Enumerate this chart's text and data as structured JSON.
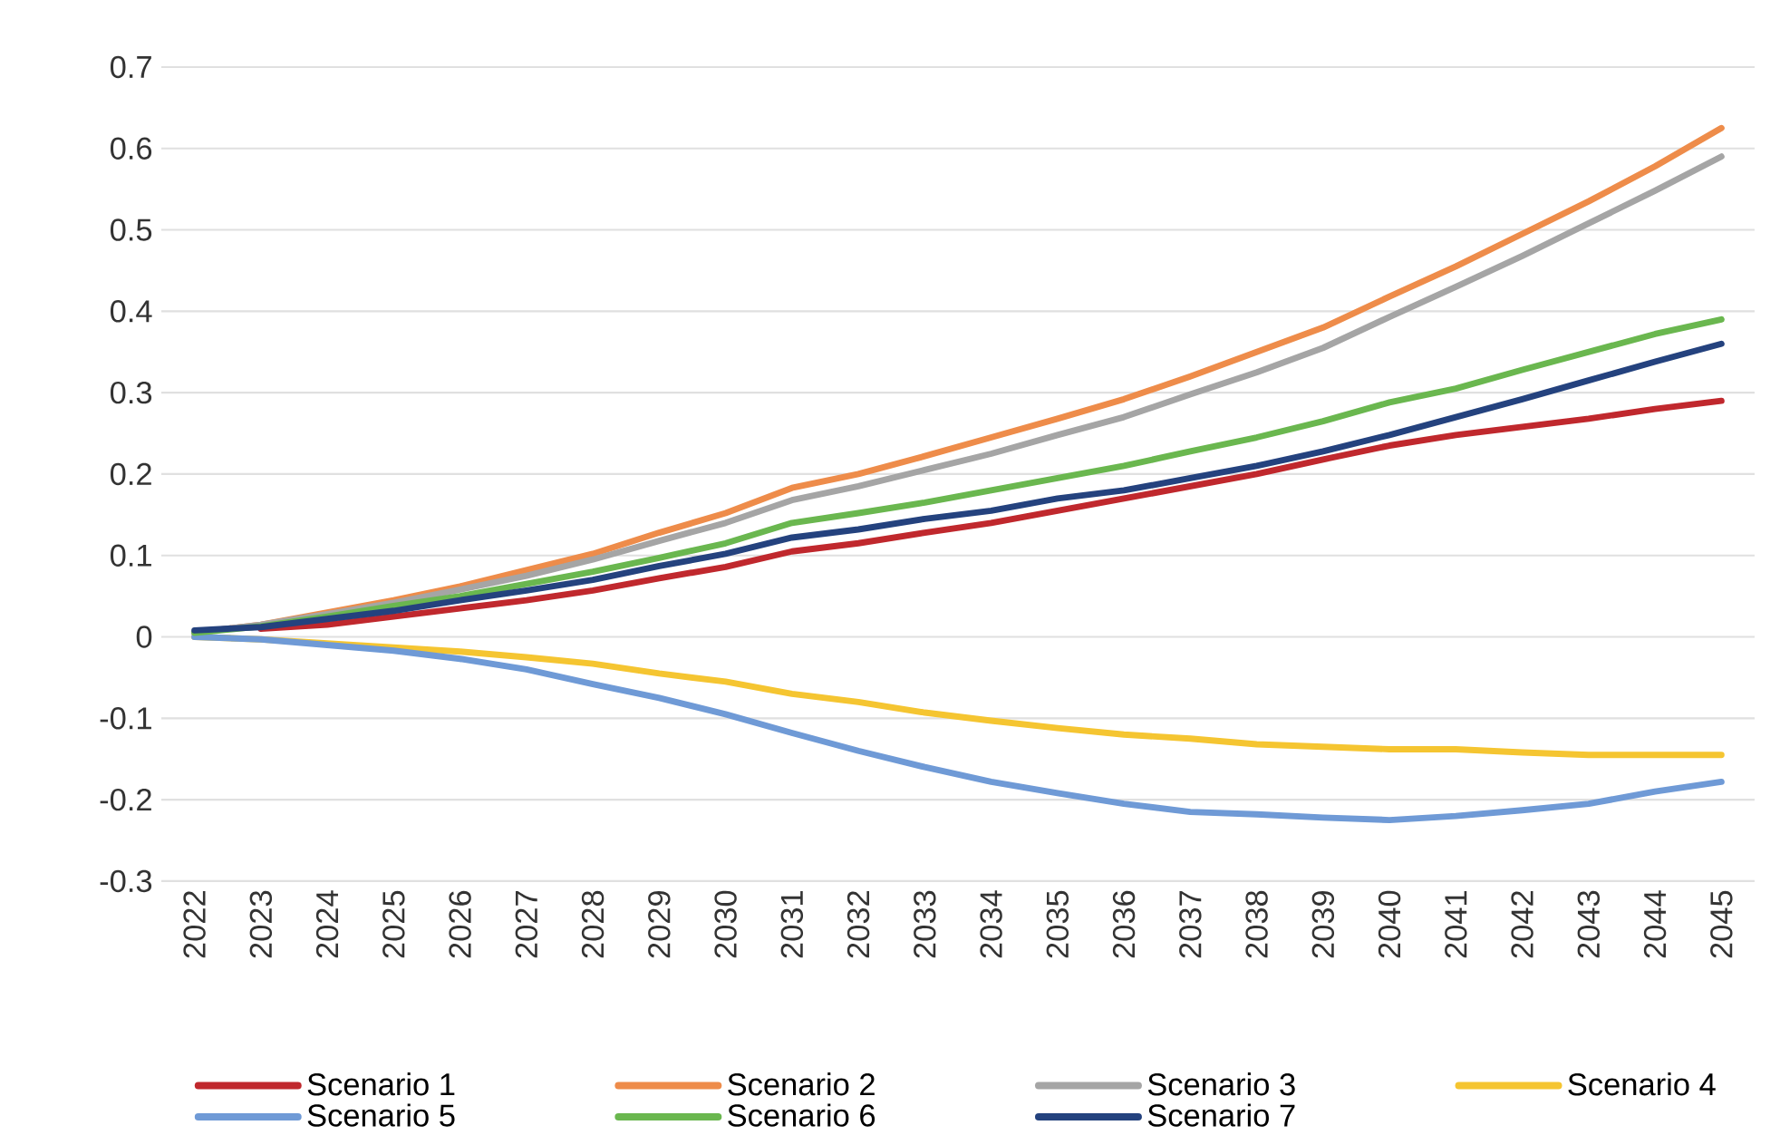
{
  "chart_data": {
    "type": "line",
    "categories": [
      "2022",
      "2023",
      "2024",
      "2025",
      "2026",
      "2027",
      "2028",
      "2029",
      "2030",
      "2031",
      "2032",
      "2033",
      "2034",
      "2035",
      "2036",
      "2037",
      "2038",
      "2039",
      "2040",
      "2041",
      "2042",
      "2043",
      "2044",
      "2045"
    ],
    "ylim": [
      -0.3,
      0.7
    ],
    "yticks": [
      -0.3,
      -0.2,
      -0.1,
      0,
      0.1,
      0.2,
      0.3,
      0.4,
      0.5,
      0.6,
      0.7
    ],
    "grid": "y",
    "legend": "bottom",
    "line_style": "solid",
    "series": [
      {
        "name": "Scenario 1",
        "color": "#c0282d",
        "values": [
          null,
          0.01,
          0.015,
          0.025,
          0.035,
          0.045,
          0.057,
          0.072,
          0.086,
          0.105,
          0.115,
          0.128,
          0.14,
          0.155,
          0.17,
          0.185,
          0.2,
          0.218,
          0.235,
          0.248,
          0.258,
          0.268,
          0.28,
          0.29
        ]
      },
      {
        "name": "Scenario 2",
        "color": "#ee8c4a",
        "values": [
          0.005,
          0.015,
          0.03,
          0.045,
          0.062,
          0.082,
          0.102,
          0.128,
          0.152,
          0.183,
          0.2,
          0.222,
          0.245,
          0.268,
          0.292,
          0.32,
          0.35,
          0.38,
          0.418,
          0.455,
          0.495,
          0.535,
          0.578,
          0.625
        ]
      },
      {
        "name": "Scenario 3",
        "color": "#a5a5a5",
        "values": [
          0.005,
          0.015,
          0.028,
          0.042,
          0.058,
          0.075,
          0.095,
          0.118,
          0.14,
          0.168,
          0.185,
          0.205,
          0.225,
          0.248,
          0.27,
          0.298,
          0.325,
          0.355,
          0.393,
          0.43,
          0.468,
          0.508,
          0.548,
          0.59
        ]
      },
      {
        "name": "Scenario 4",
        "color": "#f5c531",
        "values": [
          0,
          -0.003,
          -0.008,
          -0.013,
          -0.018,
          -0.025,
          -0.033,
          -0.045,
          -0.055,
          -0.07,
          -0.08,
          -0.093,
          -0.103,
          -0.112,
          -0.12,
          -0.125,
          -0.132,
          -0.135,
          -0.138,
          -0.138,
          -0.142,
          -0.145,
          -0.145,
          -0.145
        ]
      },
      {
        "name": "Scenario 5",
        "color": "#6f9ad6",
        "values": [
          0,
          -0.003,
          -0.01,
          -0.017,
          -0.027,
          -0.04,
          -0.058,
          -0.075,
          -0.095,
          -0.118,
          -0.14,
          -0.16,
          -0.178,
          -0.192,
          -0.205,
          -0.215,
          -0.218,
          -0.222,
          -0.225,
          -0.22,
          -0.213,
          -0.205,
          -0.19,
          -0.178
        ]
      },
      {
        "name": "Scenario 6",
        "color": "#6ab74f",
        "values": [
          0.005,
          0.013,
          0.025,
          0.038,
          0.05,
          0.065,
          0.08,
          0.097,
          0.115,
          0.14,
          0.152,
          0.165,
          0.18,
          0.195,
          0.21,
          0.228,
          0.245,
          0.265,
          0.288,
          0.305,
          0.328,
          0.35,
          0.372,
          0.39
        ]
      },
      {
        "name": "Scenario 7",
        "color": "#24427e",
        "values": [
          0.008,
          0.012,
          0.022,
          0.032,
          0.045,
          0.057,
          0.07,
          0.087,
          0.102,
          0.122,
          0.132,
          0.145,
          0.155,
          0.17,
          0.18,
          0.195,
          0.21,
          0.228,
          0.248,
          0.27,
          0.292,
          0.315,
          0.338,
          0.36
        ]
      }
    ]
  }
}
